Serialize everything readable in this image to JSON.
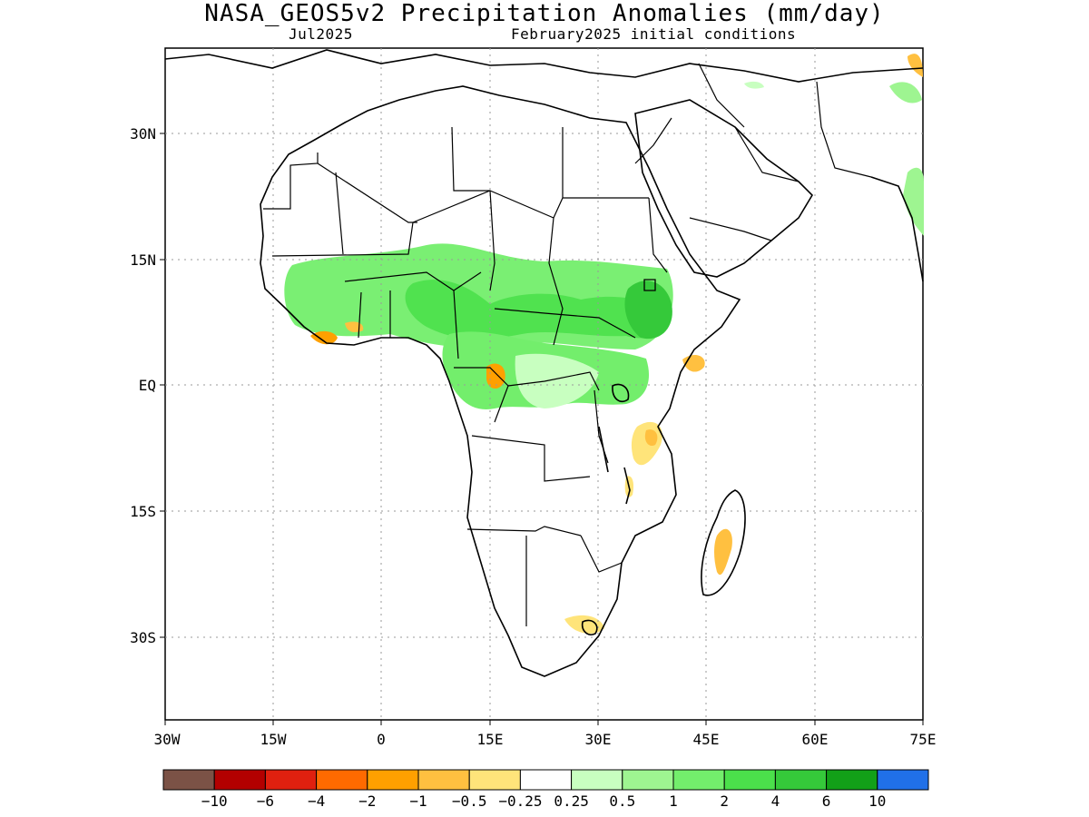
{
  "header": {
    "title": "NASA_GEOS5v2 Precipitation Anomalies (mm/day)",
    "month": "Jul2025",
    "init": "February2025 initial conditions"
  },
  "axes": {
    "lat_labels": [
      "30N",
      "15N",
      "EQ",
      "15S",
      "30S"
    ],
    "lon_labels": [
      "30W",
      "15W",
      "0",
      "15E",
      "30E",
      "45E",
      "60E",
      "75E"
    ]
  },
  "colorbar": {
    "colors": [
      "#7b5246",
      "#b30000",
      "#e0200f",
      "#ff6a00",
      "#ffa000",
      "#ffc040",
      "#ffe47a",
      "#ffffff",
      "#c8ffc0",
      "#9ef591",
      "#73ee6c",
      "#4be04b",
      "#35c93a",
      "#12a018",
      "#2070e8"
    ],
    "labels": [
      "−10",
      "−6",
      "−4",
      "−2",
      "−1",
      "−0.5",
      "−0.25",
      "0.25",
      "0.5",
      "1",
      "2",
      "4",
      "6",
      "10"
    ]
  },
  "map_colors": {
    "land_outline": "#000000",
    "grid": "#9a9a9a"
  }
}
